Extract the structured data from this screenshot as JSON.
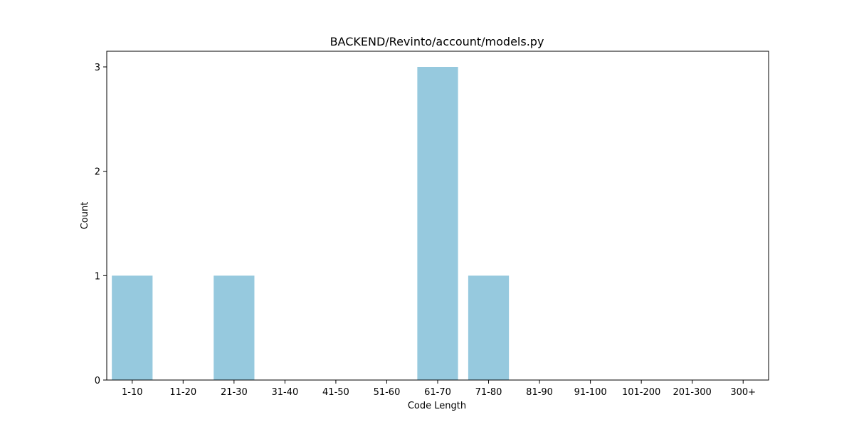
{
  "chart_data": {
    "type": "bar",
    "title": "BACKEND/Revinto/account/models.py",
    "xlabel": "Code Length",
    "ylabel": "Count",
    "categories": [
      "1-10",
      "11-20",
      "21-30",
      "31-40",
      "41-50",
      "51-60",
      "61-70",
      "71-80",
      "81-90",
      "91-100",
      "101-200",
      "201-300",
      "300+"
    ],
    "values": [
      1,
      0,
      1,
      0,
      0,
      0,
      3,
      1,
      0,
      0,
      0,
      0,
      0
    ],
    "ylim": [
      0,
      3.15
    ],
    "yticks": [
      0,
      1,
      2,
      3
    ],
    "bar_color": "#96c9de",
    "grid": false,
    "legend": "none"
  }
}
